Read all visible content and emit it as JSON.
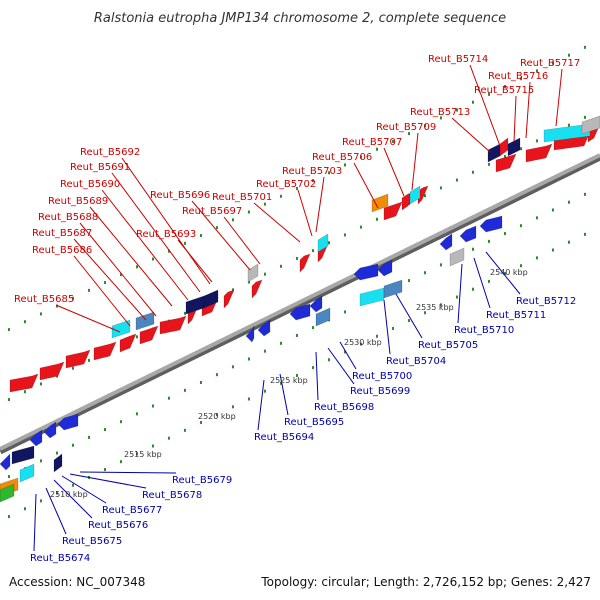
{
  "title": "Ralstonia eutropha JMP134 chromosome 2, complete sequence",
  "footer": {
    "accession": "Accession: NC_007348",
    "topology": "Topology: circular; Length: 2,726,152 bp; Genes: 2,427"
  },
  "colors": {
    "forward_label": "#cc0000",
    "reverse_label": "#0000aa",
    "backbone": "#8a8a8a",
    "tick_dots": "#2e8b2e",
    "red_gene": "#e8141b",
    "blue_gene": "#1e2bd6",
    "navy_gene": "#121560",
    "cyan_gene": "#19e0f0",
    "steel_gene": "#4a86c0",
    "grey_gene": "#b8b8b8",
    "orange_gene": "#f08c0a",
    "green_gene": "#2eb82e"
  },
  "scale_labels": [
    "2510 kbp",
    "2515 kbp",
    "2520 kbp",
    "2525 kbp",
    "2530 kbp",
    "2535 kbp",
    "2540 kbp"
  ],
  "forward_genes": [
    "Reut_B5685",
    "Reut_B5686",
    "Reut_B5687",
    "Reut_B5688",
    "Reut_B5689",
    "Reut_B5690",
    "Reut_B5691",
    "Reut_B5692",
    "Reut_B5693",
    "Reut_B5696",
    "Reut_B5697",
    "Reut_B5701",
    "Reut_B5702",
    "Reut_B5703",
    "Reut_B5706",
    "Reut_B5707",
    "Reut_B5709",
    "Reut_B5713",
    "Reut_B5714",
    "Reut_B5715",
    "Reut_B5716",
    "Reut_B5717"
  ],
  "reverse_genes": [
    "Reut_B5674",
    "Reut_B5675",
    "Reut_B5676",
    "Reut_B5677",
    "Reut_B5678",
    "Reut_B5679",
    "Reut_B5694",
    "Reut_B5695",
    "Reut_B5698",
    "Reut_B5699",
    "Reut_B5700",
    "Reut_B5704",
    "Reut_B5705",
    "Reut_B5710",
    "Reut_B5711",
    "Reut_B5712"
  ]
}
